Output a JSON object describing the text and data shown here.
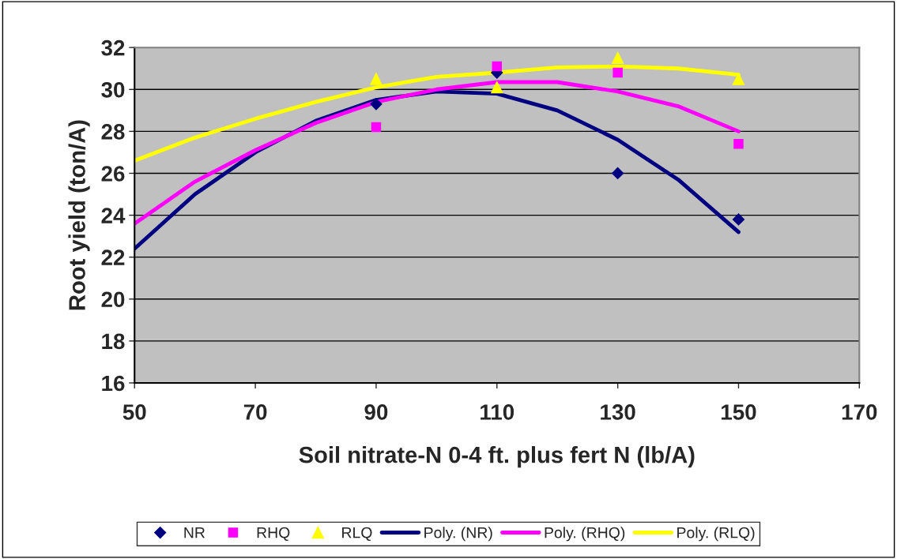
{
  "chart_data": {
    "type": "scatter",
    "xlabel": "Soil nitrate-N 0-4 ft. plus fert N (lb/A)",
    "ylabel": "Root yield (ton/A)",
    "x": [
      90,
      110,
      130,
      150
    ],
    "xlim": [
      50,
      170
    ],
    "xticks": [
      50,
      70,
      90,
      110,
      130,
      150,
      170
    ],
    "ylim": [
      16,
      32
    ],
    "yticks": [
      16,
      18,
      20,
      22,
      24,
      26,
      28,
      30,
      32
    ],
    "grid": "y",
    "legend": "bottom",
    "series": [
      {
        "name": "NR",
        "marker": "diamond",
        "color": "#000080",
        "values": [
          29.3,
          30.8,
          26.0,
          23.8
        ]
      },
      {
        "name": "RHQ",
        "marker": "square",
        "color": "#ff00ff",
        "values": [
          28.2,
          31.1,
          30.8,
          27.4
        ]
      },
      {
        "name": "RLQ",
        "marker": "triangle",
        "color": "#ffff00",
        "values": [
          30.5,
          30.1,
          31.5,
          30.5
        ]
      },
      {
        "name": "Poly. (NR)",
        "type": "line",
        "marker": "none",
        "color": "#000080",
        "x": [
          50,
          60,
          70,
          80,
          90,
          100,
          110,
          120,
          130,
          140,
          150
        ],
        "values": [
          22.4,
          25.0,
          27.0,
          28.5,
          29.5,
          29.9,
          29.8,
          29.0,
          27.6,
          25.7,
          23.2
        ]
      },
      {
        "name": "Poly. (RHQ)",
        "type": "line",
        "marker": "none",
        "color": "#ff00ff",
        "x": [
          50,
          60,
          70,
          80,
          90,
          100,
          110,
          120,
          130,
          140,
          150
        ],
        "values": [
          23.6,
          25.6,
          27.1,
          28.4,
          29.4,
          30.0,
          30.35,
          30.35,
          29.9,
          29.2,
          28.0
        ]
      },
      {
        "name": "Poly. (RLQ)",
        "type": "line",
        "marker": "none",
        "color": "#ffff00",
        "x": [
          50,
          60,
          70,
          80,
          90,
          100,
          110,
          120,
          130,
          140,
          150
        ],
        "values": [
          26.6,
          27.7,
          28.6,
          29.4,
          30.1,
          30.6,
          30.8,
          31.05,
          31.1,
          31.0,
          30.7
        ]
      }
    ]
  }
}
